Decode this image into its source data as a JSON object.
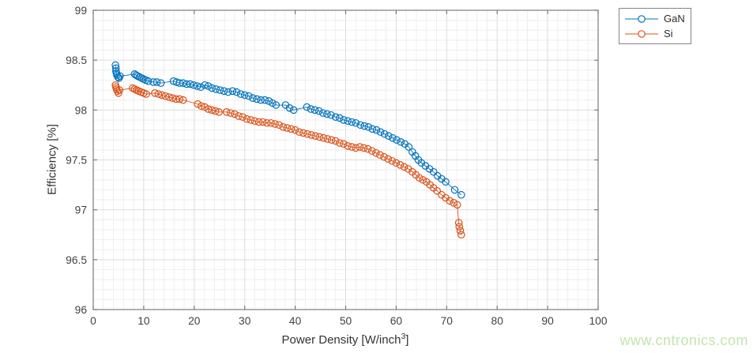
{
  "figure": {
    "watermark_text": "www.cntronics.com",
    "watermark_color": "#c2e5ad",
    "background": "#ffffff"
  },
  "chart_data": {
    "type": "line",
    "marker": "open-circle",
    "title": "",
    "xlabel_parts": {
      "pre": "Power Density [W/inch",
      "sup": "3",
      "post": "]"
    },
    "ylabel": "Efficiency [%]",
    "xlim": [
      0,
      100
    ],
    "ylim": [
      96,
      99
    ],
    "xticks": [
      0,
      10,
      20,
      30,
      40,
      50,
      60,
      70,
      80,
      90,
      100
    ],
    "xtick_labels": [
      "0",
      "10",
      "20",
      "30",
      "40",
      "50",
      "60",
      "70",
      "80",
      "90",
      "100"
    ],
    "yticks": [
      96,
      96.5,
      97,
      97.5,
      98,
      98.5,
      99
    ],
    "ytick_labels": [
      "96",
      "96.5",
      "97",
      "97.5",
      "98",
      "98.5",
      "99"
    ],
    "minor_x_step": 2,
    "minor_y_step": 0.1,
    "grid": {
      "major_color": "#dcdcdc",
      "minor_color": "#eeeeee",
      "box_color": "#7b7b7b",
      "tick_label_color": "#424242"
    },
    "legend": {
      "position": "outside-top-right"
    },
    "series": [
      {
        "name": "GaN",
        "color": "#0072BD",
        "points": [
          [
            4.4,
            98.45
          ],
          [
            4.5,
            98.42
          ],
          [
            4.5,
            98.39
          ],
          [
            4.6,
            98.37
          ],
          [
            4.7,
            98.35
          ],
          [
            4.9,
            98.33
          ],
          [
            5.1,
            98.32
          ],
          [
            5.3,
            98.34
          ],
          [
            8.2,
            98.36
          ],
          [
            8.5,
            98.35
          ],
          [
            8.8,
            98.34
          ],
          [
            9.2,
            98.33
          ],
          [
            9.6,
            98.32
          ],
          [
            10.0,
            98.31
          ],
          [
            10.4,
            98.3
          ],
          [
            10.9,
            98.29
          ],
          [
            11.9,
            98.28
          ],
          [
            12.6,
            98.28
          ],
          [
            13.4,
            98.27
          ],
          [
            15.9,
            98.29
          ],
          [
            16.5,
            98.28
          ],
          [
            17.1,
            98.27
          ],
          [
            17.8,
            98.27
          ],
          [
            18.5,
            98.26
          ],
          [
            19.2,
            98.26
          ],
          [
            19.9,
            98.25
          ],
          [
            20.6,
            98.24
          ],
          [
            21.3,
            98.23
          ],
          [
            22.1,
            98.25
          ],
          [
            22.8,
            98.24
          ],
          [
            23.5,
            98.22
          ],
          [
            24.3,
            98.21
          ],
          [
            25.1,
            98.2
          ],
          [
            25.9,
            98.19
          ],
          [
            26.7,
            98.18
          ],
          [
            27.6,
            98.19
          ],
          [
            28.4,
            98.18
          ],
          [
            29.2,
            98.16
          ],
          [
            30.0,
            98.15
          ],
          [
            30.8,
            98.14
          ],
          [
            31.6,
            98.12
          ],
          [
            32.4,
            98.11
          ],
          [
            33.2,
            98.1
          ],
          [
            34.0,
            98.1
          ],
          [
            34.8,
            98.09
          ],
          [
            35.5,
            98.07
          ],
          [
            36.2,
            98.05
          ],
          [
            38.1,
            98.05
          ],
          [
            38.9,
            98.02
          ],
          [
            39.7,
            98.0
          ],
          [
            42.3,
            98.03
          ],
          [
            43.1,
            98.01
          ],
          [
            43.9,
            98.0
          ],
          [
            44.7,
            97.99
          ],
          [
            45.5,
            97.97
          ],
          [
            46.3,
            97.96
          ],
          [
            47.1,
            97.95
          ],
          [
            48.0,
            97.93
          ],
          [
            48.8,
            97.92
          ],
          [
            49.6,
            97.9
          ],
          [
            50.4,
            97.89
          ],
          [
            51.2,
            97.88
          ],
          [
            52.0,
            97.87
          ],
          [
            52.9,
            97.85
          ],
          [
            53.7,
            97.84
          ],
          [
            54.5,
            97.83
          ],
          [
            55.3,
            97.81
          ],
          [
            56.1,
            97.8
          ],
          [
            56.9,
            97.78
          ],
          [
            57.7,
            97.76
          ],
          [
            58.5,
            97.74
          ],
          [
            59.3,
            97.72
          ],
          [
            60.1,
            97.7
          ],
          [
            60.9,
            97.68
          ],
          [
            61.7,
            97.66
          ],
          [
            62.5,
            97.63
          ],
          [
            63.2,
            97.58
          ],
          [
            63.8,
            97.54
          ],
          [
            64.4,
            97.5
          ],
          [
            65.0,
            97.47
          ],
          [
            65.8,
            97.44
          ],
          [
            66.6,
            97.41
          ],
          [
            67.4,
            97.38
          ],
          [
            68.2,
            97.34
          ],
          [
            69.0,
            97.31
          ],
          [
            69.8,
            97.28
          ],
          [
            71.6,
            97.2
          ],
          [
            72.9,
            97.15
          ]
        ]
      },
      {
        "name": "Si",
        "color": "#D95319",
        "points": [
          [
            4.4,
            98.25
          ],
          [
            4.5,
            98.23
          ],
          [
            4.6,
            98.21
          ],
          [
            4.8,
            98.19
          ],
          [
            5.0,
            98.17
          ],
          [
            5.2,
            98.2
          ],
          [
            7.8,
            98.22
          ],
          [
            8.2,
            98.21
          ],
          [
            8.6,
            98.2
          ],
          [
            9.0,
            98.19
          ],
          [
            9.5,
            98.18
          ],
          [
            10.0,
            98.17
          ],
          [
            10.5,
            98.16
          ],
          [
            12.2,
            98.17
          ],
          [
            12.9,
            98.16
          ],
          [
            13.6,
            98.15
          ],
          [
            14.3,
            98.14
          ],
          [
            15.0,
            98.13
          ],
          [
            15.7,
            98.12
          ],
          [
            16.4,
            98.11
          ],
          [
            17.1,
            98.11
          ],
          [
            17.8,
            98.1
          ],
          [
            20.7,
            98.06
          ],
          [
            21.4,
            98.04
          ],
          [
            22.1,
            98.03
          ],
          [
            22.8,
            98.01
          ],
          [
            23.5,
            98.0
          ],
          [
            24.2,
            97.99
          ],
          [
            24.9,
            97.98
          ],
          [
            26.4,
            97.98
          ],
          [
            27.2,
            97.97
          ],
          [
            28.0,
            97.96
          ],
          [
            28.8,
            97.94
          ],
          [
            29.6,
            97.93
          ],
          [
            30.4,
            97.91
          ],
          [
            31.2,
            97.9
          ],
          [
            32.0,
            97.89
          ],
          [
            32.8,
            97.88
          ],
          [
            33.6,
            97.88
          ],
          [
            34.4,
            97.87
          ],
          [
            35.2,
            97.87
          ],
          [
            36.0,
            97.86
          ],
          [
            36.8,
            97.85
          ],
          [
            37.6,
            97.83
          ],
          [
            38.4,
            97.82
          ],
          [
            39.2,
            97.81
          ],
          [
            40.0,
            97.8
          ],
          [
            40.8,
            97.78
          ],
          [
            41.6,
            97.77
          ],
          [
            42.4,
            97.76
          ],
          [
            43.2,
            97.75
          ],
          [
            44.0,
            97.74
          ],
          [
            44.8,
            97.73
          ],
          [
            45.6,
            97.72
          ],
          [
            46.4,
            97.71
          ],
          [
            47.2,
            97.7
          ],
          [
            48.0,
            97.69
          ],
          [
            48.8,
            97.67
          ],
          [
            49.6,
            97.66
          ],
          [
            50.4,
            97.64
          ],
          [
            51.2,
            97.63
          ],
          [
            52.0,
            97.62
          ],
          [
            52.8,
            97.63
          ],
          [
            53.6,
            97.62
          ],
          [
            54.4,
            97.61
          ],
          [
            55.2,
            97.59
          ],
          [
            56.0,
            97.57
          ],
          [
            56.8,
            97.55
          ],
          [
            57.6,
            97.53
          ],
          [
            58.4,
            97.51
          ],
          [
            59.2,
            97.49
          ],
          [
            60.0,
            97.47
          ],
          [
            60.8,
            97.45
          ],
          [
            61.6,
            97.43
          ],
          [
            62.4,
            97.41
          ],
          [
            63.2,
            97.38
          ],
          [
            63.9,
            97.35
          ],
          [
            64.6,
            97.32
          ],
          [
            65.3,
            97.3
          ],
          [
            66.0,
            97.28
          ],
          [
            66.7,
            97.25
          ],
          [
            67.4,
            97.22
          ],
          [
            68.1,
            97.19
          ],
          [
            69.0,
            97.15
          ],
          [
            69.8,
            97.12
          ],
          [
            70.6,
            97.09
          ],
          [
            71.4,
            97.07
          ],
          [
            72.1,
            97.05
          ],
          [
            72.4,
            96.87
          ],
          [
            72.5,
            96.83
          ],
          [
            72.7,
            96.79
          ],
          [
            72.9,
            96.75
          ]
        ]
      }
    ]
  }
}
